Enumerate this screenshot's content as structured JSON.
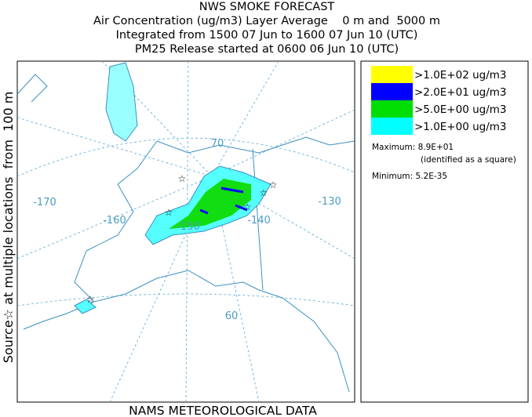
{
  "header": {
    "title": "NWS SMOKE FORECAST",
    "lines": [
      "Air Concentration (ug/m3) Layer Average    0 m and  5000 m",
      "Integrated from 1500 07 Jun to 1600 07 Jun 10 (UTC)",
      "PM25 Release started at 0600 06 Jun 10 (UTC)"
    ]
  },
  "side_label": "Source☆ at multiple locations  from  100 m",
  "map": {
    "labels": [
      "-170",
      "-160",
      "-150",
      "-140",
      "-130",
      "70",
      "60"
    ]
  },
  "legend": {
    "items": [
      {
        "label": ">1.0E+02 ug/m3",
        "color": "#ffff00"
      },
      {
        "label": ">2.0E+01 ug/m3",
        "color": "#0000ff"
      },
      {
        "label": ">5.0E+00 ug/m3",
        "color": "#00dd00"
      },
      {
        "label": ">1.0E+00 ug/m3",
        "color": "#00ffff"
      }
    ],
    "maximum": "Maximum: 8.9E+01",
    "max_note": "(identified as a square)",
    "minimum": "Minimum: 5.2E-35"
  },
  "footer": "NAMS METEOROLOGICAL DATA"
}
